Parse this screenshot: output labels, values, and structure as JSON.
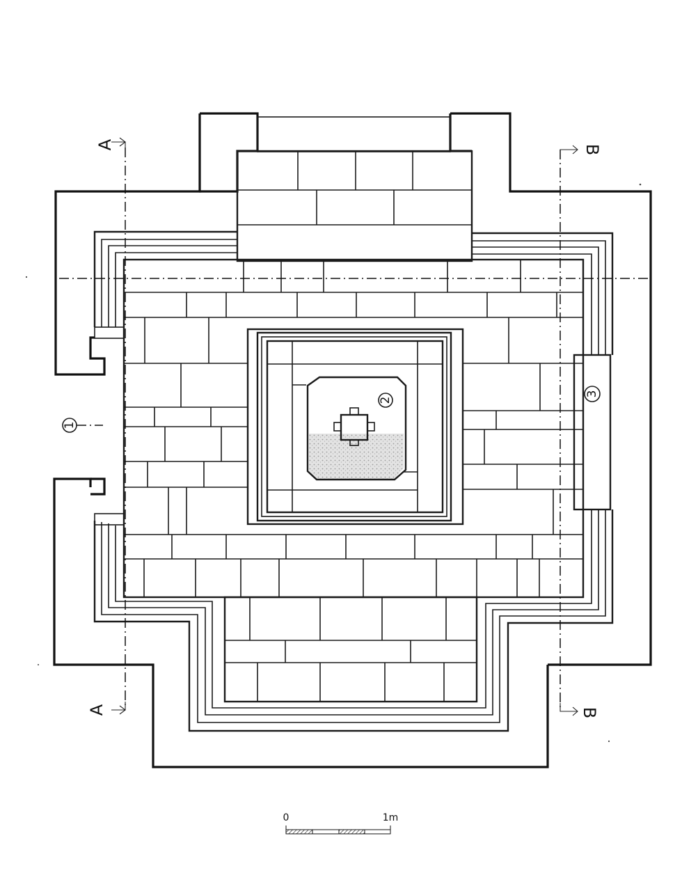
{
  "section_labels": {
    "a_top": "A",
    "a_bottom": "A",
    "b_top": "B",
    "b_bottom": "B"
  },
  "callouts": {
    "one": "1",
    "two": "2",
    "three": "3"
  },
  "scale": {
    "start": "0",
    "end": "1m"
  },
  "colors": {
    "ink": "#111111",
    "paper": "#ffffff",
    "stipple": "#c8c8c8"
  }
}
